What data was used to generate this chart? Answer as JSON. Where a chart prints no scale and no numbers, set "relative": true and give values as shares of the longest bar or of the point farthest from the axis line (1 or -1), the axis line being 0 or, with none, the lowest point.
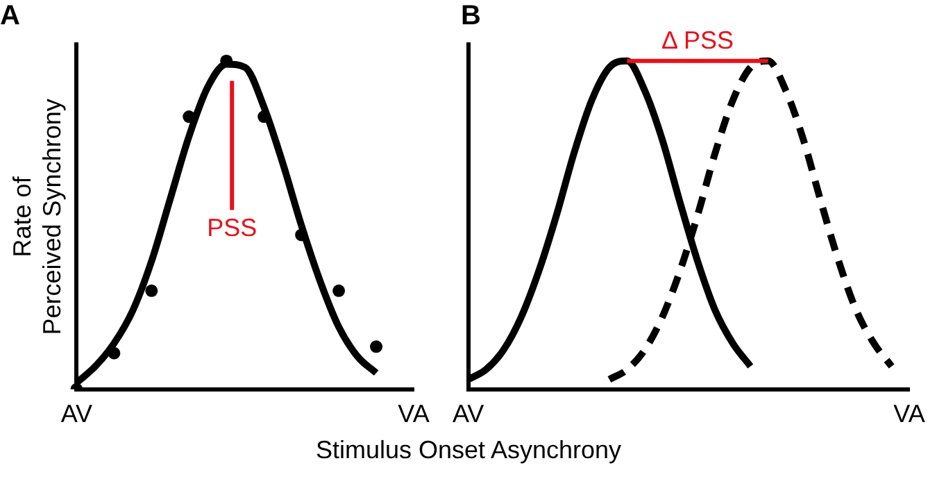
{
  "chart_data": [
    {
      "type": "line",
      "title": "A",
      "ylabel": "Rate of\nPerceived Synchrony",
      "xlabel": "Stimulus Onset Asynchrony",
      "categories": [
        "AV",
        null,
        null,
        null,
        null,
        null,
        null,
        null,
        null,
        null,
        null,
        null,
        null,
        null,
        null,
        null,
        null,
        null,
        "VA"
      ],
      "relative": true,
      "grid": false,
      "legend": false,
      "tick_labels": "x",
      "annotations": [
        "PSS"
      ],
      "series": [
        {
          "type": "line",
          "color": "#000000",
          "marker": "none",
          "line_style": "solid",
          "values": [
            0.02,
            0.07,
            0.14,
            0.24,
            0.39,
            0.58,
            0.77,
            0.92,
            0.99,
            0.98,
            0.86,
            0.69,
            0.5,
            0.33,
            0.19,
            0.1,
            0.05,
            null,
            null
          ]
        },
        {
          "type": "scatter",
          "color": "#000000",
          "marker": "circle",
          "values": [
            0,
            null,
            0.11,
            null,
            0.3,
            null,
            0.83,
            null,
            1.0,
            null,
            0.83,
            null,
            0.47,
            null,
            0.3,
            null,
            0.13,
            null,
            null
          ]
        }
      ]
    },
    {
      "type": "line",
      "title": "B",
      "categories": [
        "AV",
        null,
        null,
        null,
        null,
        null,
        null,
        null,
        null,
        null,
        null,
        null,
        null,
        null,
        null,
        null,
        null,
        null,
        null,
        null,
        null,
        null,
        null,
        null,
        null,
        "VA"
      ],
      "relative": true,
      "grid": false,
      "legend": false,
      "tick_labels": "x",
      "series": [
        {
          "type": "line",
          "color": "#000000",
          "marker": "none",
          "line_style": "solid",
          "values": [
            0.03,
            0.06,
            0.12,
            0.22,
            0.36,
            0.53,
            0.72,
            0.88,
            0.98,
            1.0,
            0.91,
            0.76,
            0.57,
            0.39,
            0.24,
            0.14,
            0.07,
            null,
            null,
            null,
            null,
            null,
            null,
            null,
            null,
            null
          ]
        },
        {
          "type": "line",
          "color": "#000000",
          "marker": "none",
          "line_style": "dashed",
          "values": [
            null,
            null,
            null,
            null,
            null,
            null,
            null,
            null,
            0.03,
            0.06,
            0.12,
            0.22,
            0.36,
            0.53,
            0.72,
            0.88,
            0.98,
            1.0,
            0.91,
            0.76,
            0.57,
            0.39,
            0.24,
            0.14,
            0.07,
            null
          ]
        },
        {
          "type": "line",
          "name": "Δ PSS",
          "color": "#e8101a",
          "marker": "none",
          "line_style": "solid",
          "values": [
            null,
            null,
            null,
            null,
            null,
            null,
            null,
            null,
            null,
            1.0,
            1.0,
            1.0,
            1.0,
            1.0,
            1.0,
            1.0,
            1.0,
            1.0,
            null,
            null,
            null,
            null,
            null,
            null,
            null,
            null
          ]
        }
      ]
    }
  ]
}
